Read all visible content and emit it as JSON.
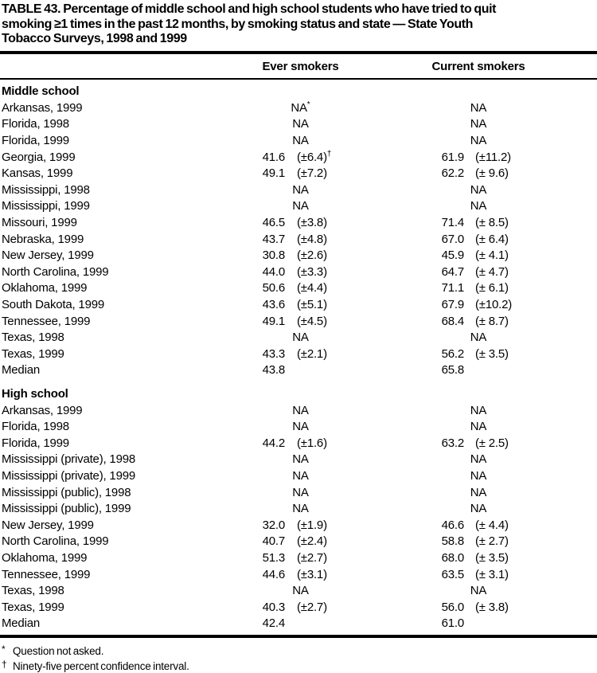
{
  "title_lines": [
    "TABLE 43. Percentage of middle school and high school students who have tried to quit",
    "smoking ≥1 times in the past 12 months, by smoking status and state — State Youth",
    "Tobacco Surveys, 1998 and 1999"
  ],
  "columns": {
    "ever": "Ever smokers",
    "current": "Current smokers"
  },
  "sections": [
    {
      "header": "Middle school",
      "rows": [
        {
          "label": "Arkansas, 1999",
          "ever": {
            "na": "NA",
            "sup": "*"
          },
          "current": {
            "na": "NA"
          }
        },
        {
          "label": "Florida, 1998",
          "ever": {
            "na": "NA"
          },
          "current": {
            "na": "NA"
          }
        },
        {
          "label": "Florida, 1999",
          "ever": {
            "na": "NA"
          },
          "current": {
            "na": "NA"
          }
        },
        {
          "label": "Georgia, 1999",
          "ever": {
            "v": "41.6",
            "ci": "(±6.4)",
            "sup": "†"
          },
          "current": {
            "v": "61.9",
            "ci": "(±11.2)"
          }
        },
        {
          "label": "Kansas, 1999",
          "ever": {
            "v": "49.1",
            "ci": "(±7.2)"
          },
          "current": {
            "v": "62.2",
            "ci": "(± 9.6)"
          }
        },
        {
          "label": "Mississippi, 1998",
          "ever": {
            "na": "NA"
          },
          "current": {
            "na": "NA"
          }
        },
        {
          "label": "Mississippi, 1999",
          "ever": {
            "na": "NA"
          },
          "current": {
            "na": "NA"
          }
        },
        {
          "label": "Missouri, 1999",
          "ever": {
            "v": "46.5",
            "ci": "(±3.8)"
          },
          "current": {
            "v": "71.4",
            "ci": "(± 8.5)"
          }
        },
        {
          "label": "Nebraska, 1999",
          "ever": {
            "v": "43.7",
            "ci": "(±4.8)"
          },
          "current": {
            "v": "67.0",
            "ci": "(± 6.4)"
          }
        },
        {
          "label": "New Jersey, 1999",
          "ever": {
            "v": "30.8",
            "ci": "(±2.6)"
          },
          "current": {
            "v": "45.9",
            "ci": "(± 4.1)"
          }
        },
        {
          "label": "North Carolina, 1999",
          "ever": {
            "v": "44.0",
            "ci": "(±3.3)"
          },
          "current": {
            "v": "64.7",
            "ci": "(± 4.7)"
          }
        },
        {
          "label": "Oklahoma, 1999",
          "ever": {
            "v": "50.6",
            "ci": "(±4.4)"
          },
          "current": {
            "v": "71.1",
            "ci": "(± 6.1)"
          }
        },
        {
          "label": "South Dakota, 1999",
          "ever": {
            "v": "43.6",
            "ci": "(±5.1)"
          },
          "current": {
            "v": "67.9",
            "ci": "(±10.2)"
          }
        },
        {
          "label": "Tennessee, 1999",
          "ever": {
            "v": "49.1",
            "ci": "(±4.5)"
          },
          "current": {
            "v": "68.4",
            "ci": "(± 8.7)"
          }
        },
        {
          "label": "Texas, 1998",
          "ever": {
            "na": "NA"
          },
          "current": {
            "na": "NA"
          }
        },
        {
          "label": "Texas, 1999",
          "ever": {
            "v": "43.3",
            "ci": "(±2.1)"
          },
          "current": {
            "v": "56.2",
            "ci": "(± 3.5)"
          }
        },
        {
          "label": "Median",
          "ever": {
            "v": "43.8"
          },
          "current": {
            "v": "65.8"
          }
        }
      ]
    },
    {
      "header": "High school",
      "rows": [
        {
          "label": "Arkansas, 1999",
          "ever": {
            "na": "NA"
          },
          "current": {
            "na": "NA"
          }
        },
        {
          "label": "Florida, 1998",
          "ever": {
            "na": "NA"
          },
          "current": {
            "na": "NA"
          }
        },
        {
          "label": "Florida, 1999",
          "ever": {
            "v": "44.2",
            "ci": "(±1.6)"
          },
          "current": {
            "v": "63.2",
            "ci": "(± 2.5)"
          }
        },
        {
          "label": "Mississippi (private), 1998",
          "ever": {
            "na": "NA"
          },
          "current": {
            "na": "NA"
          }
        },
        {
          "label": "Mississippi (private), 1999",
          "ever": {
            "na": "NA"
          },
          "current": {
            "na": "NA"
          }
        },
        {
          "label": "Mississippi (public), 1998",
          "ever": {
            "na": "NA"
          },
          "current": {
            "na": "NA"
          }
        },
        {
          "label": "Mississippi (public), 1999",
          "ever": {
            "na": "NA"
          },
          "current": {
            "na": "NA"
          }
        },
        {
          "label": "New Jersey, 1999",
          "ever": {
            "v": "32.0",
            "ci": "(±1.9)"
          },
          "current": {
            "v": "46.6",
            "ci": "(± 4.4)"
          }
        },
        {
          "label": "North Carolina, 1999",
          "ever": {
            "v": "40.7",
            "ci": "(±2.4)"
          },
          "current": {
            "v": "58.8",
            "ci": "(± 2.7)"
          }
        },
        {
          "label": "Oklahoma, 1999",
          "ever": {
            "v": "51.3",
            "ci": "(±2.7)"
          },
          "current": {
            "v": "68.0",
            "ci": "(± 3.5)"
          }
        },
        {
          "label": "Tennessee, 1999",
          "ever": {
            "v": "44.6",
            "ci": "(±3.1)"
          },
          "current": {
            "v": "63.5",
            "ci": "(± 3.1)"
          }
        },
        {
          "label": "Texas, 1998",
          "ever": {
            "na": "NA"
          },
          "current": {
            "na": "NA"
          }
        },
        {
          "label": "Texas, 1999",
          "ever": {
            "v": "40.3",
            "ci": "(±2.7)"
          },
          "current": {
            "v": "56.0",
            "ci": "(± 3.8)"
          }
        },
        {
          "label": "Median",
          "ever": {
            "v": "42.4"
          },
          "current": {
            "v": "61.0"
          }
        }
      ]
    }
  ],
  "footnotes": [
    {
      "sym": "*",
      "text": "Question not asked."
    },
    {
      "sym": "†",
      "text": "Ninety-five percent confidence interval."
    }
  ]
}
